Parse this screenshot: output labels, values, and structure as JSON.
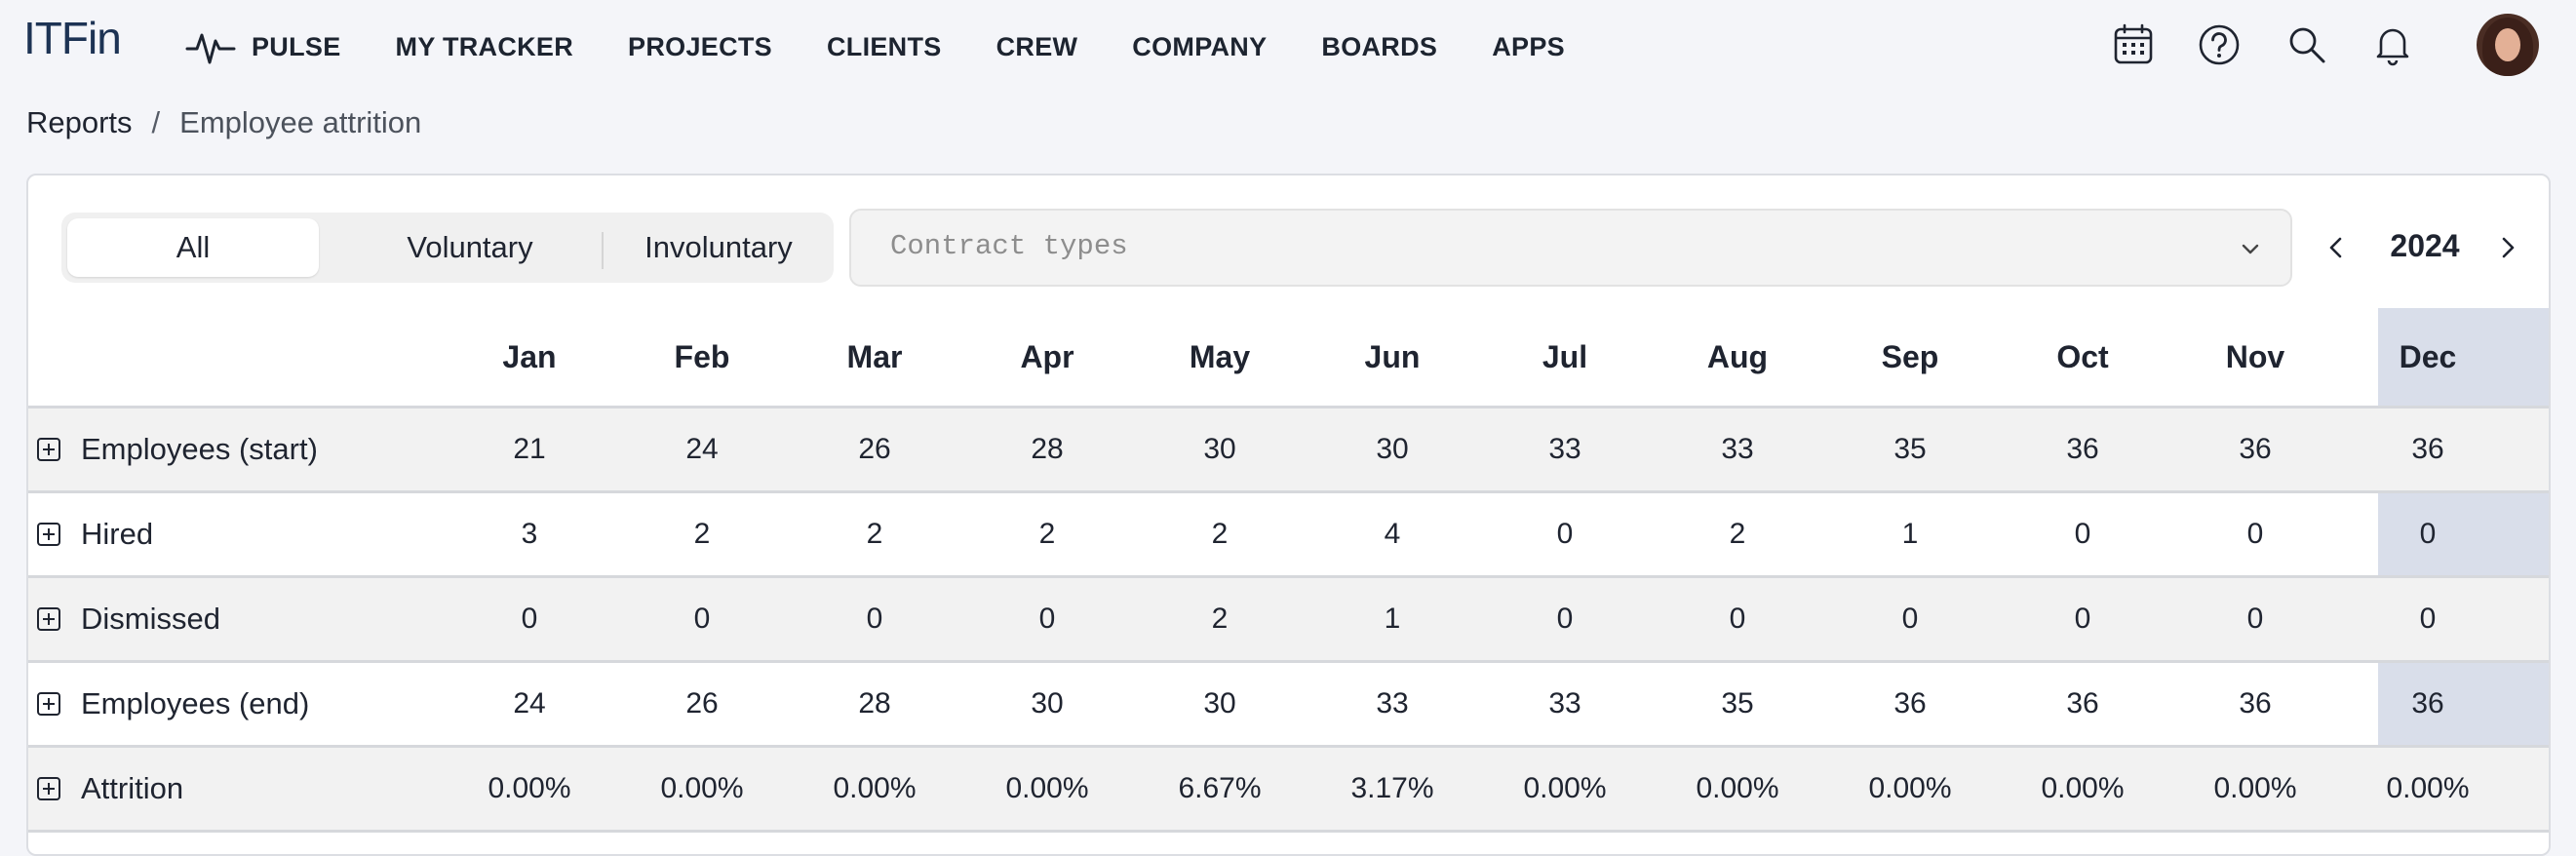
{
  "app": {
    "logo": "ITFin"
  },
  "nav": {
    "items": [
      "PULSE",
      "MY TRACKER",
      "PROJECTS",
      "CLIENTS",
      "CREW",
      "COMPANY",
      "BOARDS",
      "APPS"
    ],
    "icons": [
      "calendar-icon",
      "help-icon",
      "search-icon",
      "bell-icon"
    ]
  },
  "breadcrumb": {
    "root": "Reports",
    "separator": "/",
    "current": "Employee attrition"
  },
  "filters": {
    "segments": [
      "All",
      "Voluntary",
      "Involuntary"
    ],
    "active_segment": "All",
    "contract_types_placeholder": "Contract types",
    "year": "2024"
  },
  "table": {
    "months": [
      "Jan",
      "Feb",
      "Mar",
      "Apr",
      "May",
      "Jun",
      "Jul",
      "Aug",
      "Sep",
      "Oct",
      "Nov",
      "Dec"
    ],
    "highlighted_month": "Dec",
    "highlight_color": "#d1d7e4",
    "rows": [
      {
        "label": "Employees (start)",
        "values": [
          "21",
          "24",
          "26",
          "28",
          "30",
          "30",
          "33",
          "33",
          "35",
          "36",
          "36",
          "36"
        ]
      },
      {
        "label": "Hired",
        "values": [
          "3",
          "2",
          "2",
          "2",
          "2",
          "4",
          "0",
          "2",
          "1",
          "0",
          "0",
          "0"
        ]
      },
      {
        "label": "Dismissed",
        "values": [
          "0",
          "0",
          "0",
          "0",
          "2",
          "1",
          "0",
          "0",
          "0",
          "0",
          "0",
          "0"
        ]
      },
      {
        "label": "Employees (end)",
        "values": [
          "24",
          "26",
          "28",
          "30",
          "30",
          "33",
          "33",
          "35",
          "36",
          "36",
          "36",
          "36"
        ]
      },
      {
        "label": "Attrition",
        "values": [
          "0.00%",
          "0.00%",
          "0.00%",
          "0.00%",
          "6.67%",
          "3.17%",
          "0.00%",
          "0.00%",
          "0.00%",
          "0.00%",
          "0.00%",
          "0.00%"
        ]
      }
    ]
  }
}
